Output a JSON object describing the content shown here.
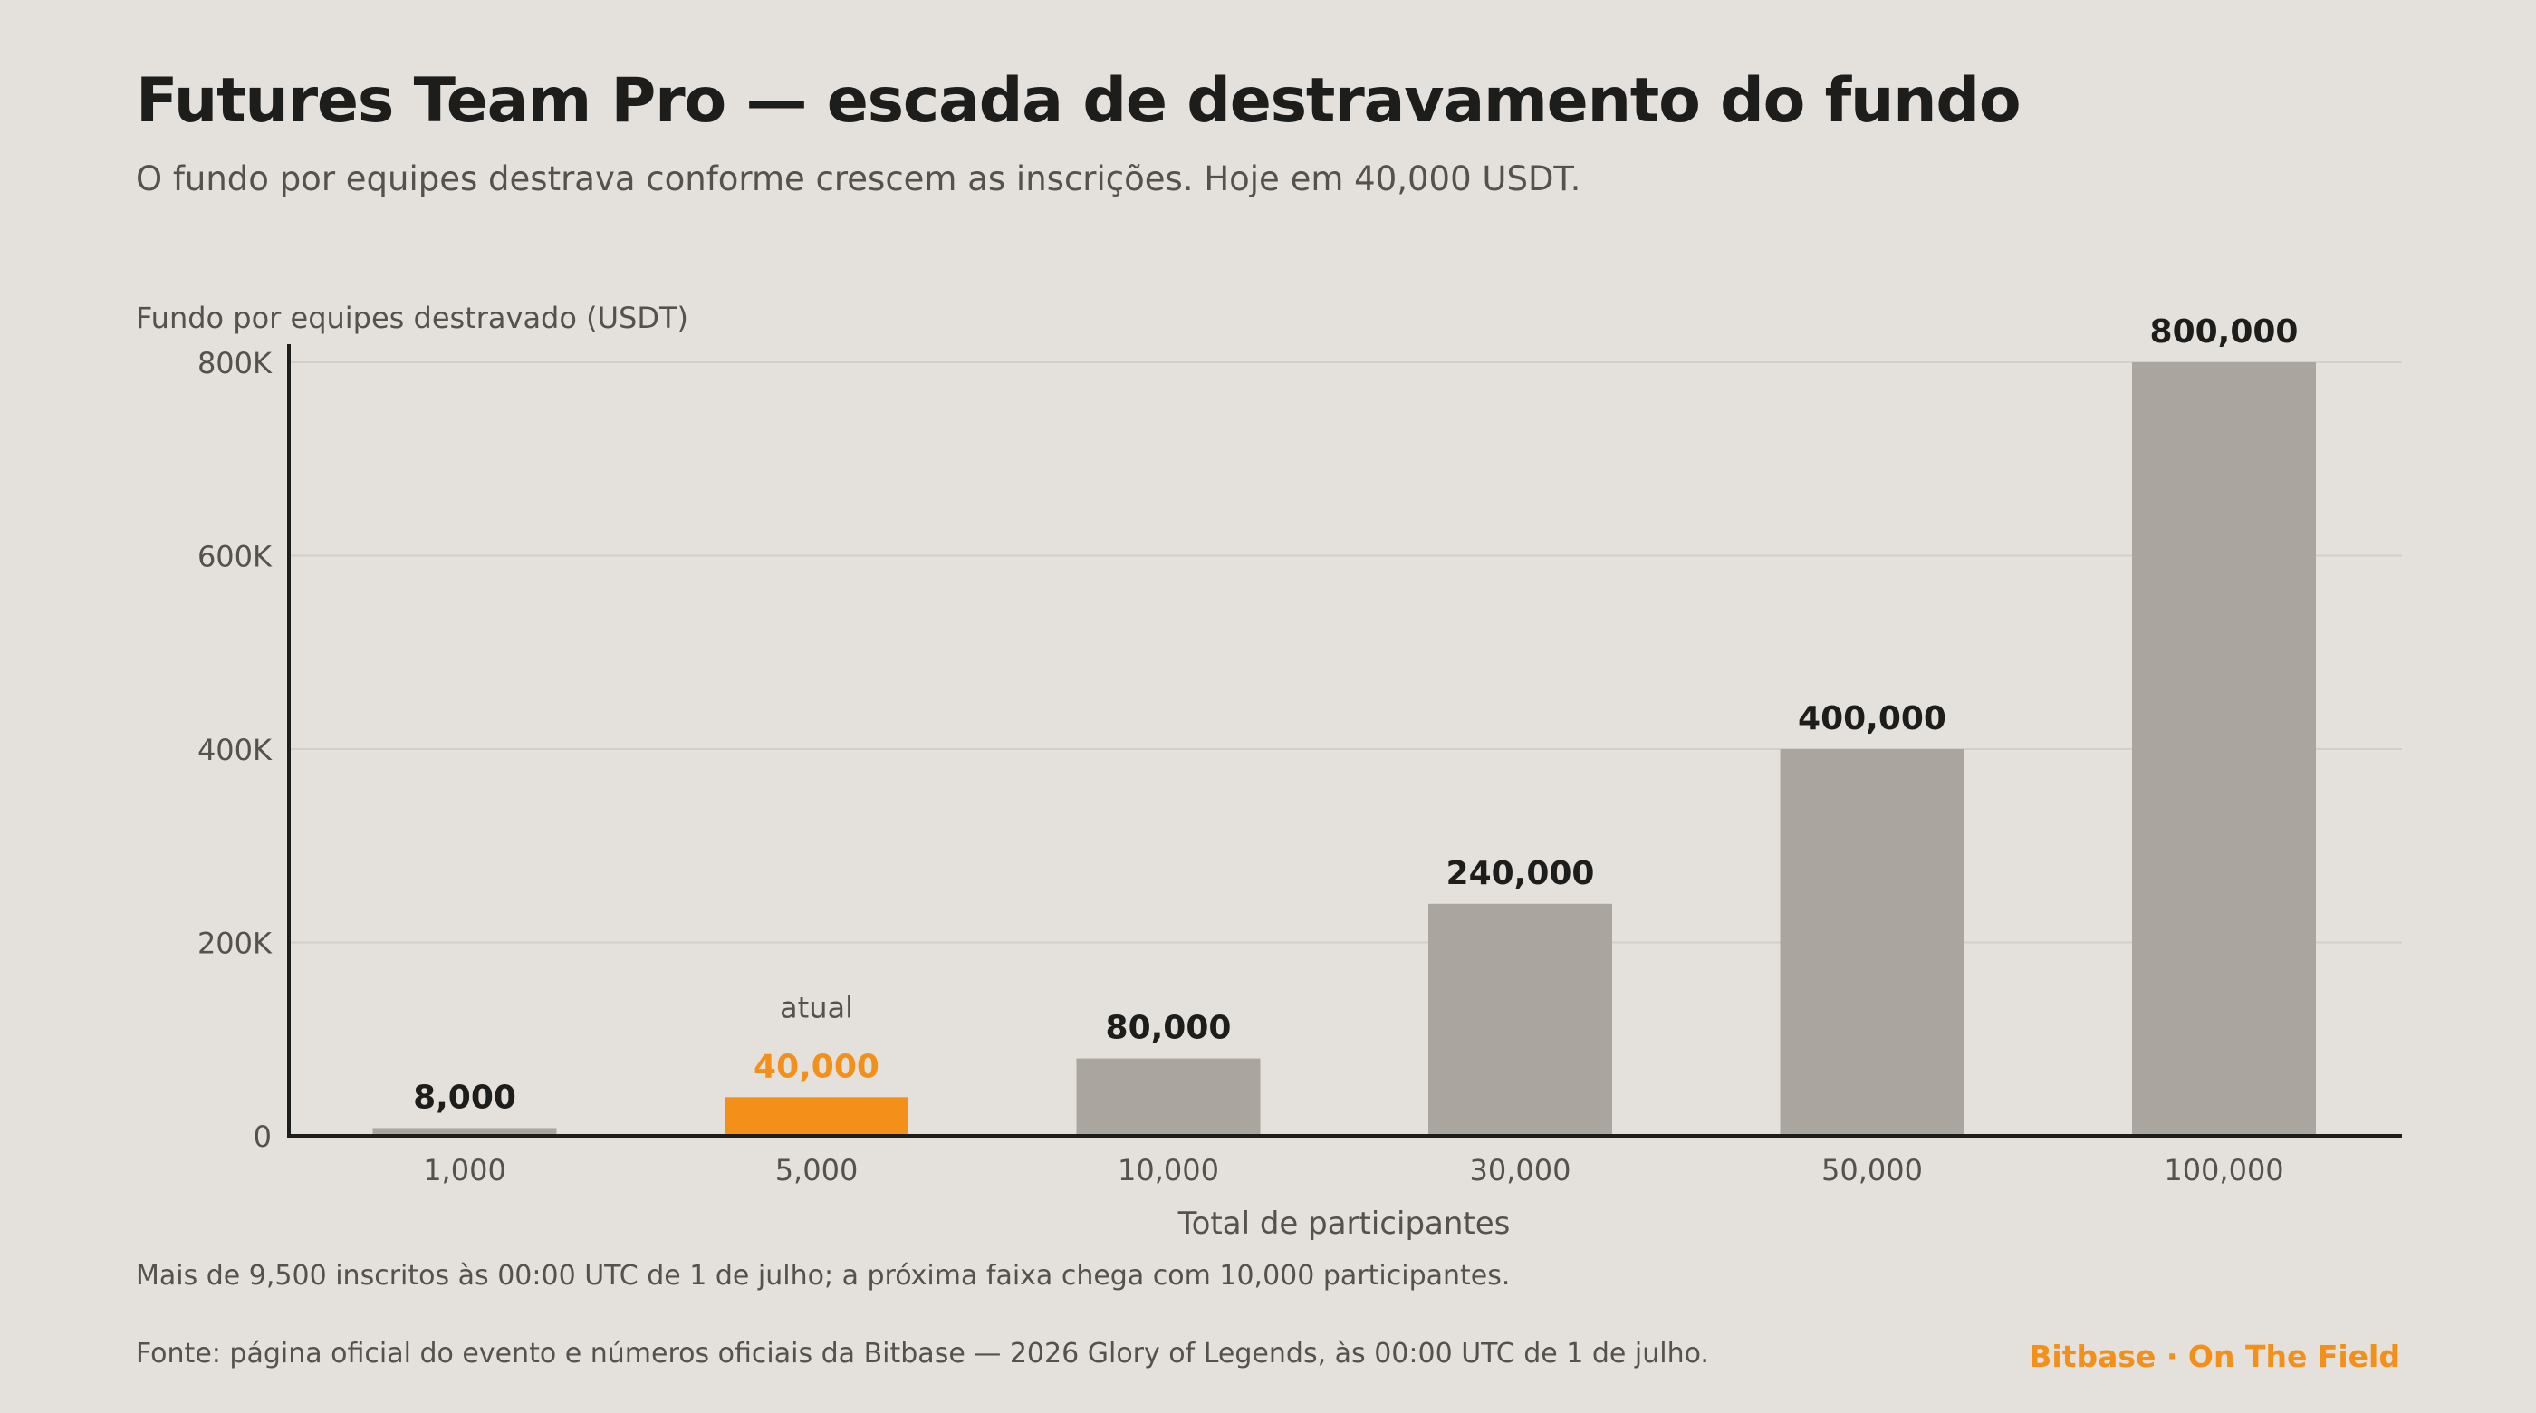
{
  "header": {
    "title": "Futures Team Pro — escada de destravamento do fundo",
    "subtitle": "O fundo por equipes destrava conforme crescem as inscrições. Hoje em 40,000 USDT."
  },
  "footer": {
    "note": "Mais de 9,500 inscritos às 00:00 UTC de 1 de julho; a próxima faixa chega com 10,000 participantes.",
    "source": "Fonte: página oficial do evento e números oficiais da Bitbase — 2026 Glory of Legends, às 00:00 UTC de 1 de julho.",
    "brand": "Bitbase · On The Field"
  },
  "chart_data": {
    "type": "bar",
    "title": "Futures Team Pro — escada de destravamento do fundo",
    "subtitle": "O fundo por equipes destrava conforme crescem as inscrições. Hoje em 40,000 USDT.",
    "xlabel": "Total de participantes",
    "ylabel": "Fundo por equipes destravado (USDT)",
    "categories": [
      "1,000",
      "5,000",
      "10,000",
      "30,000",
      "50,000",
      "100,000"
    ],
    "values": [
      8000,
      40000,
      80000,
      240000,
      400000,
      800000
    ],
    "data_labels": [
      "8,000",
      "40,000",
      "80,000",
      "240,000",
      "400,000",
      "800,000"
    ],
    "ylim": [
      0,
      800000
    ],
    "yticks": [
      0,
      200000,
      400000,
      600000,
      800000
    ],
    "ytick_labels": [
      "0",
      "200K",
      "400K",
      "600K",
      "800K"
    ],
    "grid": true,
    "highlight_index": 1,
    "highlight_annotation": "atual",
    "colors": {
      "bar": "#aaa69f",
      "highlight": "#f39019",
      "label": "#1d1d1b",
      "axis": "#1d1d1b",
      "grid": "#d2cec8",
      "muted_text": "#55524e"
    }
  }
}
